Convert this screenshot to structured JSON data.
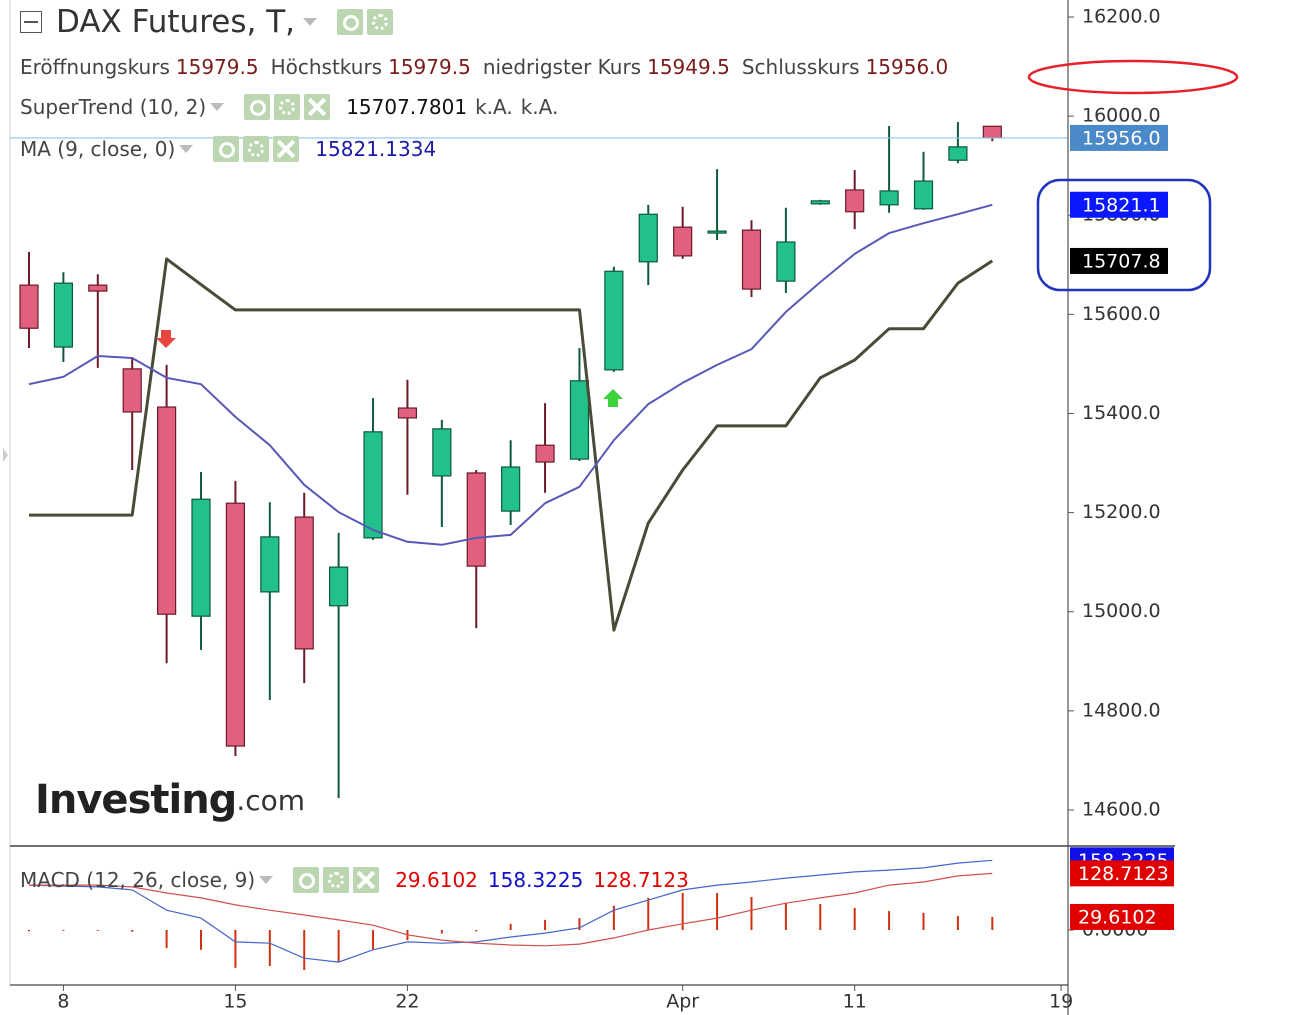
{
  "chart_data": [
    {
      "type": "candlestick",
      "title": "DAX Futures, T,",
      "ohlc_legend": [
        {
          "label": "Eröffnungskurs",
          "value": "15979.5"
        },
        {
          "label": "Höchstkurs",
          "value": "15979.5"
        },
        {
          "label": "niedrigster Kurs",
          "value": "15949.5"
        },
        {
          "label": "Schlusskurs",
          "value": "15956.0"
        }
      ],
      "candles": {
        "up_color": "#22c08a",
        "down_color": "#e0607e",
        "up_edge": "#0d5a3a",
        "down_edge": "#6b1a2a",
        "open": [
          15659,
          15534,
          15659,
          15490,
          15413,
          14991,
          15219,
          15040,
          15191,
          15012,
          15149,
          15411,
          15274,
          15280,
          15203,
          15336,
          15308,
          15488,
          15706,
          15776,
          15764,
          15770,
          15667,
          15823,
          15851,
          15821,
          15813,
          15911,
          15979.5
        ],
        "high": [
          15726,
          15685,
          15681,
          15514,
          15498,
          15282,
          15264,
          15221,
          15240,
          15159,
          15431,
          15468,
          15387,
          15286,
          15346,
          15421,
          15532,
          15696,
          15821,
          15817,
          15893,
          15790,
          15815,
          15831,
          15891,
          15980,
          15928,
          15988,
          15979.5
        ],
        "low": [
          15532,
          15504,
          15492,
          15286,
          14896,
          14923,
          14709,
          14822,
          14856,
          14624,
          15145,
          15236,
          15171,
          14967,
          15175,
          15240,
          15304,
          15484,
          15659,
          15712,
          15750,
          15635,
          15643,
          15821,
          15772,
          15805,
          15811,
          15905,
          15949.5
        ],
        "close": [
          15572,
          15663,
          15647,
          15403,
          14995,
          15227,
          14729,
          15151,
          14925,
          15090,
          15363,
          15391,
          15369,
          15092,
          15292,
          15302,
          15466,
          15687,
          15802,
          15718,
          15768,
          15651,
          15746,
          15829,
          15807,
          15849,
          15869,
          15938,
          15956
        ]
      },
      "overlays": [
        {
          "name": "SuperTrend (10, 2)",
          "color": "#4a4a38",
          "width": 3,
          "value_label": "15707.7801",
          "value_label_color": "#111",
          "extra": [
            "k.A.",
            "k.A."
          ],
          "values": [
            15195,
            15195,
            15195,
            15195,
            15712,
            15660,
            15609,
            15609,
            15609,
            15609,
            15609,
            15609,
            15609,
            15609,
            15609,
            15609,
            15609,
            14963,
            15179,
            15286,
            15375,
            15375,
            15375,
            15472,
            15508,
            15571,
            15571,
            15663,
            15707.7801
          ]
        },
        {
          "name": "MA (9, close, 0)",
          "color": "#5858b8",
          "width": 2,
          "value_label": "15821.1334",
          "value_label_color": "#1a1aa8",
          "values": [
            15459,
            15474,
            15516,
            15512,
            15472,
            15459,
            15393,
            15336,
            15256,
            15201,
            15165,
            15141,
            15135,
            15149,
            15155,
            15219,
            15252,
            15346,
            15419,
            15462,
            15498,
            15530,
            15605,
            15665,
            15722,
            15764,
            15784,
            15802,
            15821.1334
          ]
        }
      ],
      "ylim": [
        14529.3,
        16234.3
      ],
      "yticks": [
        {
          "value": 14600,
          "label": "14600.0"
        },
        {
          "value": 14800,
          "label": "14800.0"
        },
        {
          "value": 15000,
          "label": "15000.0"
        },
        {
          "value": 15200,
          "label": "15200.0"
        },
        {
          "value": 15400,
          "label": "15400.0"
        },
        {
          "value": 15600,
          "label": "15600.0"
        },
        {
          "value": 15800,
          "label": "15800.0"
        },
        {
          "value": 16000,
          "label": "16000.0"
        },
        {
          "value": 16200,
          "label": "16200.0"
        }
      ],
      "xlim": [
        -0.552,
        30.2
      ],
      "xticks": [
        {
          "value": 1,
          "label": "8"
        },
        {
          "value": 6,
          "label": "15"
        },
        {
          "value": 11,
          "label": "22"
        },
        {
          "value": 19,
          "label": "Apr"
        },
        {
          "value": 24,
          "label": "11"
        },
        {
          "value": 30,
          "label": "19"
        }
      ],
      "last_price_line_color": "#8cc4ee",
      "price_labels": [
        {
          "value": 15956,
          "label": "15956.0",
          "color": "#4a8ac9"
        },
        {
          "value": 15821.1334,
          "label": "15821.1",
          "color": "#0a18ff"
        },
        {
          "value": 15707.7801,
          "label": "15707.8",
          "color": "#000000"
        }
      ],
      "watermark": [
        "Investing",
        ".com"
      ]
    },
    {
      "type": "macd",
      "title": "MACD (12, 26, close, 9)",
      "legend_values": [
        {
          "label": "29.6102",
          "color": "#e00000"
        },
        {
          "label": "158.3225",
          "color": "#1010c8"
        },
        {
          "label": "128.7123",
          "color": "#e00000"
        }
      ],
      "series": [
        {
          "color": "#4466cc",
          "values": [
            102,
            100,
            98,
            91,
            45,
            27,
            -27,
            -30,
            -64,
            -73,
            -45,
            -27,
            -30,
            -27,
            -16,
            -7,
            5,
            45,
            68,
            91,
            102,
            109,
            118,
            125,
            132,
            136,
            141,
            152,
            158.3225
          ]
        },
        {
          "color": "#d05050",
          "values": [
            102,
            102,
            102,
            98,
            84,
            73,
            57,
            45,
            34,
            23,
            11,
            -11,
            -23,
            -30,
            -34,
            -36,
            -32,
            -18,
            0,
            14,
            27,
            45,
            61,
            73,
            84,
            102,
            109,
            123,
            128.7123
          ]
        }
      ],
      "histogram": {
        "color": "#d03010",
        "values": [
          -3,
          -2,
          -2,
          -4,
          -41,
          -45,
          -86,
          -82,
          -91,
          -73,
          -45,
          -23,
          -8,
          -3,
          14,
          23,
          27,
          55,
          73,
          84,
          84,
          75,
          61,
          59,
          50,
          43,
          39,
          32,
          29.6102
        ]
      },
      "ylim": [
        -125,
        188.6
      ],
      "yticks": [
        {
          "value": 0,
          "label": "0.0000"
        }
      ],
      "price_labels": [
        {
          "value": 158.3225,
          "label": "158.3225",
          "color": "#1010e8"
        },
        {
          "value": 128.7123,
          "label": "128.7123",
          "color": "#e00000"
        },
        {
          "value": 29.6102,
          "label": "29.6102",
          "color": "#e00000"
        }
      ]
    }
  ]
}
